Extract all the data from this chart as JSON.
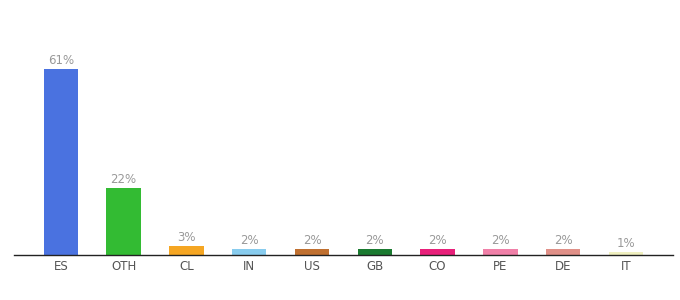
{
  "categories": [
    "ES",
    "OTH",
    "CL",
    "IN",
    "US",
    "GB",
    "CO",
    "PE",
    "DE",
    "IT"
  ],
  "values": [
    61,
    22,
    3,
    2,
    2,
    2,
    2,
    2,
    2,
    1
  ],
  "labels": [
    "61%",
    "22%",
    "3%",
    "2%",
    "2%",
    "2%",
    "2%",
    "2%",
    "2%",
    "1%"
  ],
  "bar_colors": [
    "#4a72e0",
    "#33bb33",
    "#f5a623",
    "#88ccee",
    "#c07030",
    "#1a7a30",
    "#e8207a",
    "#f080a8",
    "#e09088",
    "#f0f0c0"
  ],
  "background_color": "#ffffff",
  "ylim": [
    0,
    72
  ],
  "label_fontsize": 8.5,
  "tick_fontsize": 8.5,
  "bar_width": 0.55
}
